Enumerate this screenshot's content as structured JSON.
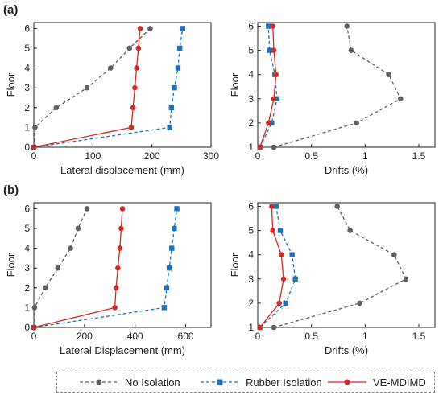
{
  "panel_labels": [
    "(a)",
    "(b)"
  ],
  "legend": {
    "items": [
      {
        "label": "No Isolation",
        "color": "#5f5f5f",
        "marker": "circle",
        "dash": true
      },
      {
        "label": "Rubber Isolation",
        "color": "#1a73c0",
        "marker": "square",
        "dash": true
      },
      {
        "label": "VE-MDIMD",
        "color": "#d42a20",
        "marker": "circle",
        "dash": false
      }
    ]
  },
  "chart_data": [
    {
      "type": "line",
      "panel": "(a)",
      "xlabel": "Lateral displacement (mm)",
      "ylabel": "Floor",
      "xlim": [
        0,
        300
      ],
      "ylim": [
        0,
        6.3
      ],
      "xticks": [
        0,
        100,
        200,
        300
      ],
      "yticks": [
        0,
        1,
        2,
        3,
        4,
        5,
        6
      ],
      "series": [
        {
          "name": "No Isolation",
          "x": [
            0,
            2,
            38,
            90,
            130,
            162,
            197
          ],
          "y": [
            0,
            1,
            2,
            3,
            4,
            5,
            6
          ]
        },
        {
          "name": "Rubber Isolation",
          "x": [
            0,
            230,
            233,
            238,
            244,
            247,
            252
          ],
          "y": [
            0,
            1,
            2,
            3,
            4,
            5,
            6
          ]
        },
        {
          "name": "VE-MDIMD",
          "x": [
            0,
            165,
            168,
            171,
            174,
            177,
            180
          ],
          "y": [
            0,
            1,
            2,
            3,
            4,
            5,
            6
          ]
        }
      ]
    },
    {
      "type": "line",
      "panel": "(a)",
      "xlabel": "Drifts (%)",
      "ylabel": "Floor",
      "xlim": [
        0,
        1.65
      ],
      "ylim": [
        1,
        6.15
      ],
      "xticks": [
        0,
        0.5,
        1,
        1.5
      ],
      "xticklabels": [
        "0",
        "0.5",
        "1",
        "1.5"
      ],
      "yticks": [
        1,
        2,
        3,
        4,
        5,
        6
      ],
      "series": [
        {
          "name": "No Isolation",
          "x": [
            0.15,
            0.92,
            1.33,
            1.22,
            0.87,
            0.83
          ],
          "y": [
            1,
            2,
            3,
            4,
            5,
            6
          ]
        },
        {
          "name": "Rubber Isolation",
          "x": [
            0.02,
            0.13,
            0.18,
            0.16,
            0.11,
            0.1
          ],
          "y": [
            1,
            2,
            3,
            4,
            5,
            6
          ]
        },
        {
          "name": "VE-MDIMD",
          "x": [
            0.02,
            0.1,
            0.15,
            0.17,
            0.15,
            0.14
          ],
          "y": [
            1,
            2,
            3,
            4,
            5,
            6
          ]
        }
      ]
    },
    {
      "type": "line",
      "panel": "(b)",
      "xlabel": "Lateral Displacement (mm)",
      "ylabel": "Floor",
      "xlim": [
        0,
        700
      ],
      "ylim": [
        0,
        6.3
      ],
      "xticks": [
        0,
        200,
        400,
        600
      ],
      "yticks": [
        0,
        1,
        2,
        3,
        4,
        5,
        6
      ],
      "series": [
        {
          "name": "No Isolation",
          "x": [
            0,
            3,
            45,
            95,
            145,
            175,
            210
          ],
          "y": [
            0,
            1,
            2,
            3,
            4,
            5,
            6
          ]
        },
        {
          "name": "Rubber Isolation",
          "x": [
            0,
            515,
            525,
            535,
            545,
            555,
            565
          ],
          "y": [
            0,
            1,
            2,
            3,
            4,
            5,
            6
          ]
        },
        {
          "name": "VE-MDIMD",
          "x": [
            0,
            320,
            325,
            332,
            340,
            345,
            350
          ],
          "y": [
            0,
            1,
            2,
            3,
            4,
            5,
            6
          ]
        }
      ]
    },
    {
      "type": "line",
      "panel": "(b)",
      "xlabel": "Drifts (%)",
      "ylabel": "Floor",
      "xlim": [
        0,
        1.65
      ],
      "ylim": [
        1,
        6.15
      ],
      "xticks": [
        0,
        0.5,
        1,
        1.5
      ],
      "xticklabels": [
        "0",
        "0.5",
        "1",
        "1.5"
      ],
      "yticks": [
        1,
        2,
        3,
        4,
        5,
        6
      ],
      "series": [
        {
          "name": "No Isolation",
          "x": [
            0.15,
            0.95,
            1.38,
            1.27,
            0.86,
            0.74
          ],
          "y": [
            1,
            2,
            3,
            4,
            5,
            6
          ]
        },
        {
          "name": "Rubber Isolation",
          "x": [
            0.02,
            0.26,
            0.35,
            0.32,
            0.21,
            0.17
          ],
          "y": [
            1,
            2,
            3,
            4,
            5,
            6
          ]
        },
        {
          "name": "VE-MDIMD",
          "x": [
            0.02,
            0.2,
            0.24,
            0.22,
            0.14,
            0.13
          ],
          "y": [
            1,
            2,
            3,
            4,
            5,
            6
          ]
        }
      ]
    }
  ]
}
